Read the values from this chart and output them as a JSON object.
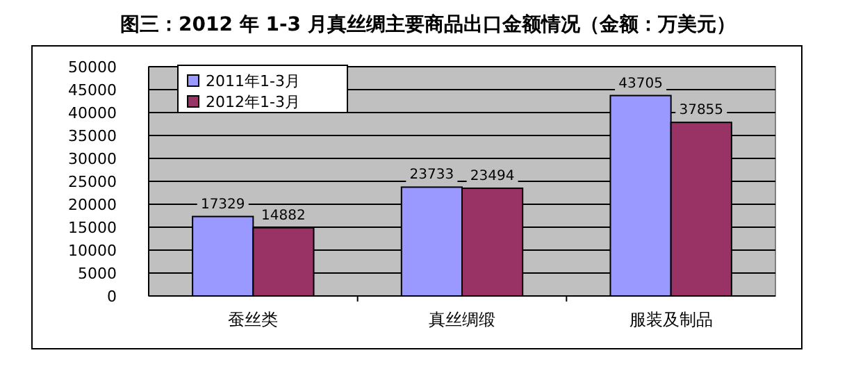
{
  "chart_data": {
    "type": "bar",
    "title": "图三：2012 年 1-3 月真丝绸主要商品出口金额情况（金额：万美元）",
    "categories": [
      "蚕丝类",
      "真丝绸缎",
      "服装及制品"
    ],
    "series": [
      {
        "name": "2011年1-3月",
        "color": "#9999ff",
        "values": [
          17329,
          23733,
          43705
        ]
      },
      {
        "name": "2012年1-3月",
        "color": "#993366",
        "values": [
          14882,
          23494,
          37855
        ]
      }
    ],
    "ylim": [
      0,
      50000
    ],
    "yticks": [
      0,
      5000,
      10000,
      15000,
      20000,
      25000,
      30000,
      35000,
      40000,
      45000,
      50000
    ],
    "grid": "y",
    "legend": "top left",
    "data_labels": true
  }
}
